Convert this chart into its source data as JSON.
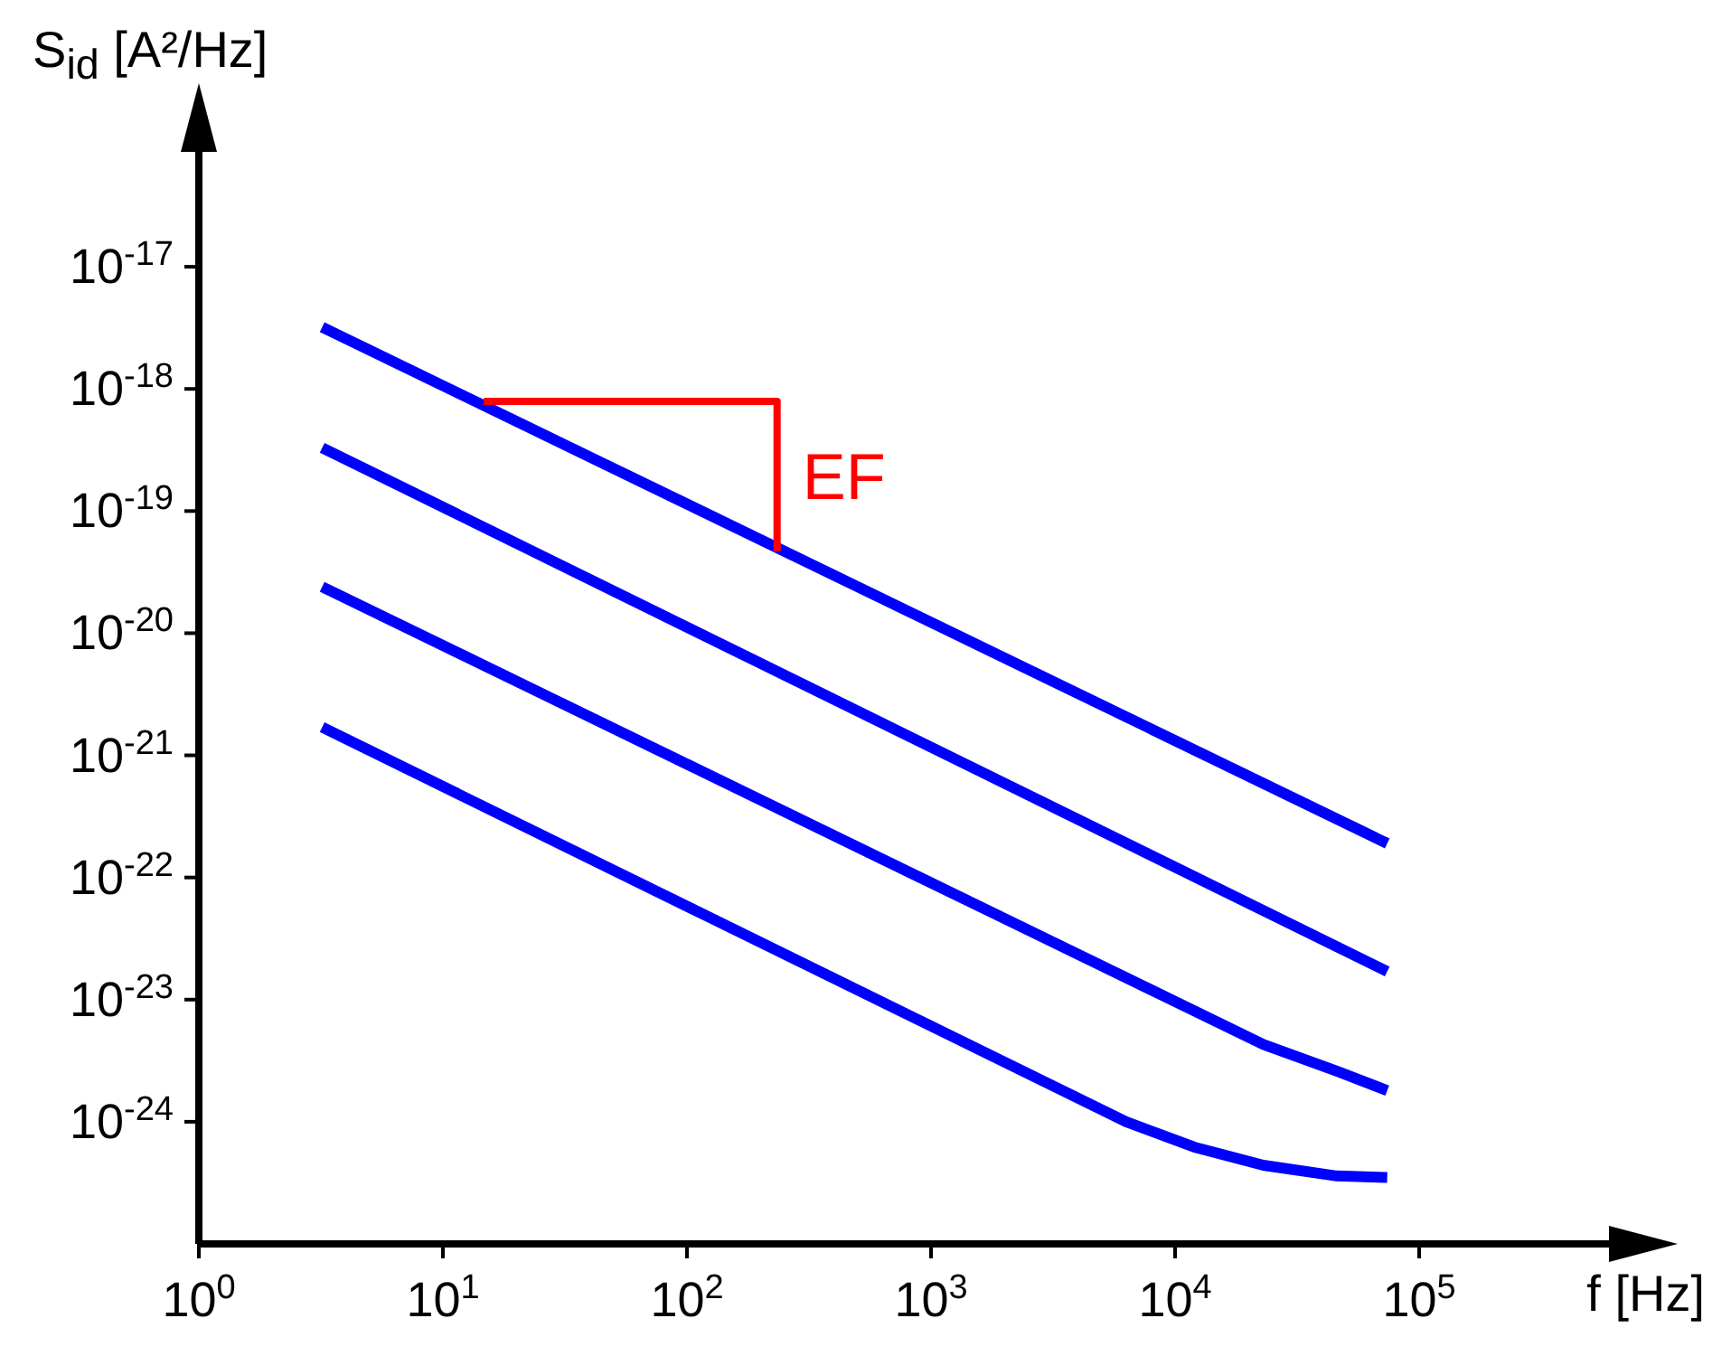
{
  "chart_data": {
    "type": "line",
    "xlabel": "f [Hz]",
    "ylabel": "S$_{id}$ [A²/Hz]",
    "log": "xy",
    "marker": "none",
    "line_style": "solid",
    "xlim": [
      1,
      1000000
    ],
    "ylim": [
      1e-25,
      1e-16
    ],
    "xticks": [
      {
        "value": 1,
        "label": "10$^{0}$"
      },
      {
        "value": 10,
        "label": "10$^{1}$"
      },
      {
        "value": 100,
        "label": "10$^{2}$"
      },
      {
        "value": 1000,
        "label": "10$^{3}$"
      },
      {
        "value": 10000,
        "label": "10$^{4}$"
      },
      {
        "value": 100000,
        "label": "10$^{5}$"
      }
    ],
    "yticks": [
      {
        "value": 1e-24,
        "label": "10$^{-24}$"
      },
      {
        "value": 1e-23,
        "label": "10$^{-23}$"
      },
      {
        "value": 1e-22,
        "label": "10$^{-22}$"
      },
      {
        "value": 1e-21,
        "label": "10$^{-21}$"
      },
      {
        "value": 1e-20,
        "label": "10$^{-20}$"
      },
      {
        "value": 1e-19,
        "label": "10$^{-19}$"
      },
      {
        "value": 1e-18,
        "label": "10$^{-18}$"
      },
      {
        "value": 1e-17,
        "label": "10$^{-17}$"
      }
    ],
    "series": [
      {
        "color": "#0000ff",
        "x": [
          3.2,
          74000
        ],
        "values": [
          3.2e-18,
          1.9e-22
        ]
      },
      {
        "color": "#0000ff",
        "x": [
          3.2,
          74000
        ],
        "values": [
          3.3e-19,
          1.7e-23
        ]
      },
      {
        "color": "#0000ff",
        "x": [
          3.2,
          23000,
          46000,
          74000
        ],
        "values": [
          2.4e-20,
          4.3e-24,
          2.6e-24,
          1.8e-24
        ]
      },
      {
        "color": "#0000ff",
        "x": [
          3.2,
          6300,
          12000,
          23000,
          46000,
          74000
        ],
        "values": [
          1.7e-21,
          1e-24,
          6.2e-25,
          4.4e-25,
          3.6e-25,
          3.5e-25
        ]
      },
      {
        "type": "line",
        "color": "#ff0000",
        "x": [
          14.7,
          234,
          234
        ],
        "values": [
          7.9e-19,
          7.9e-19,
          4.7e-20
        ]
      }
    ],
    "annotations": [
      "EF"
    ]
  }
}
